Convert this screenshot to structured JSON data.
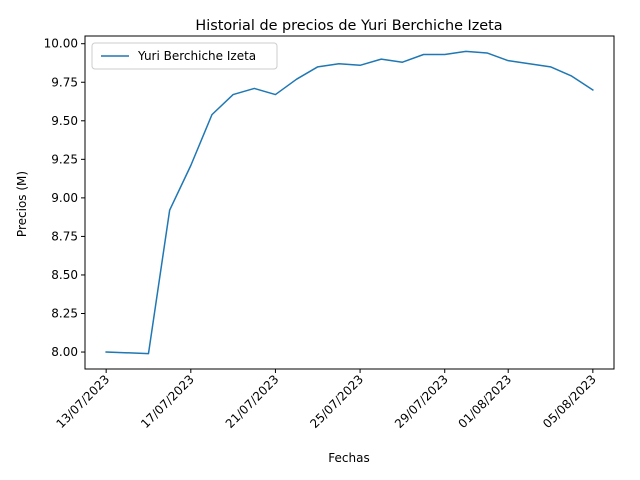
{
  "chart_data": {
    "type": "line",
    "title": "Historial de precios de Yuri Berchiche Izeta",
    "xlabel": "Fechas",
    "ylabel": "Precios (M)",
    "ylim": [
      7.89,
      10.05
    ],
    "xlim": [
      "2023-07-12",
      "2023-08-06"
    ],
    "grid": false,
    "legend_position": "top-left",
    "x_ticks": [
      {
        "date": "2023-07-13",
        "label": "13/07/2023"
      },
      {
        "date": "2023-07-17",
        "label": "17/07/2023"
      },
      {
        "date": "2023-07-21",
        "label": "21/07/2023"
      },
      {
        "date": "2023-07-25",
        "label": "25/07/2023"
      },
      {
        "date": "2023-07-29",
        "label": "29/07/2023"
      },
      {
        "date": "2023-08-01",
        "label": "01/08/2023"
      },
      {
        "date": "2023-08-05",
        "label": "05/08/2023"
      }
    ],
    "y_ticks": [
      {
        "value": 8.0,
        "label": "8.00"
      },
      {
        "value": 8.25,
        "label": "8.25"
      },
      {
        "value": 8.5,
        "label": "8.50"
      },
      {
        "value": 8.75,
        "label": "8.75"
      },
      {
        "value": 9.0,
        "label": "9.00"
      },
      {
        "value": 9.25,
        "label": "9.25"
      },
      {
        "value": 9.5,
        "label": "9.50"
      },
      {
        "value": 9.75,
        "label": "9.75"
      },
      {
        "value": 10.0,
        "label": "10.00"
      }
    ],
    "series": [
      {
        "name": "Yuri Berchiche Izeta",
        "color": "#1f77b4",
        "x": [
          "2023-07-13",
          "2023-07-15",
          "2023-07-16",
          "2023-07-17",
          "2023-07-18",
          "2023-07-19",
          "2023-07-20",
          "2023-07-21",
          "2023-07-22",
          "2023-07-23",
          "2023-07-24",
          "2023-07-25",
          "2023-07-26",
          "2023-07-27",
          "2023-07-28",
          "2023-07-29",
          "2023-07-30",
          "2023-07-31",
          "2023-08-01",
          "2023-08-02",
          "2023-08-03",
          "2023-08-04",
          "2023-08-05"
        ],
        "y": [
          8.0,
          7.99,
          8.92,
          9.21,
          9.54,
          9.67,
          9.71,
          9.67,
          9.77,
          9.85,
          9.87,
          9.86,
          9.9,
          9.88,
          9.93,
          9.93,
          9.95,
          9.94,
          9.89,
          9.87,
          9.85,
          9.79,
          9.7
        ]
      }
    ]
  }
}
